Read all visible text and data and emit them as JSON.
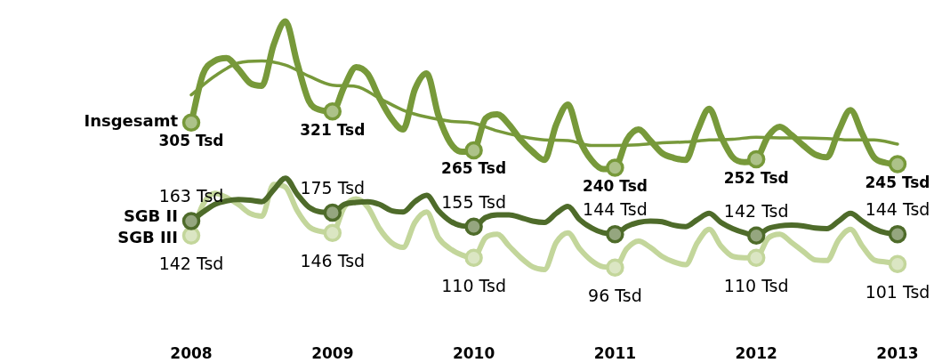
{
  "chart_data": {
    "type": "line",
    "x": [
      "2008-01",
      "2008-02",
      "2008-03",
      "2008-04",
      "2008-05",
      "2008-06",
      "2008-07",
      "2008-08",
      "2008-09",
      "2008-10",
      "2008-11",
      "2008-12",
      "2009-01",
      "2009-02",
      "2009-03",
      "2009-04",
      "2009-05",
      "2009-06",
      "2009-07",
      "2009-08",
      "2009-09",
      "2009-10",
      "2009-11",
      "2009-12",
      "2010-01",
      "2010-02",
      "2010-03",
      "2010-04",
      "2010-05",
      "2010-06",
      "2010-07",
      "2010-08",
      "2010-09",
      "2010-10",
      "2010-11",
      "2010-12",
      "2011-01",
      "2011-02",
      "2011-03",
      "2011-04",
      "2011-05",
      "2011-06",
      "2011-07",
      "2011-08",
      "2011-09",
      "2011-10",
      "2011-11",
      "2011-12",
      "2012-01",
      "2012-02",
      "2012-03",
      "2012-04",
      "2012-05",
      "2012-06",
      "2012-07",
      "2012-08",
      "2012-09",
      "2012-10",
      "2012-11",
      "2012-12",
      "2013-01"
    ],
    "xlim": [
      "2008",
      "2013"
    ],
    "xticks": [
      "2008",
      "2009",
      "2010",
      "2011",
      "2012",
      "2013"
    ],
    "tick_labels": "x",
    "grid": false,
    "legend": false,
    "line_style": "solid",
    "series": [
      {
        "name": "Insgesamt",
        "color": "#77993a",
        "values": [
          305,
          375,
          394,
          398,
          382,
          362,
          358,
          417,
          451,
          391,
          336,
          323,
          321,
          357,
          385,
          375,
          340,
          311,
          295,
          353,
          376,
          315,
          276,
          263,
          265,
          311,
          317,
          302,
          280,
          263,
          251,
          302,
          331,
          280,
          251,
          238,
          240,
          280,
          295,
          279,
          261,
          254,
          251,
          293,
          325,
          285,
          255,
          248,
          252,
          285,
          299,
          287,
          272,
          259,
          255,
          293,
          323,
          289,
          255,
          247,
          245
        ],
        "value_labels": [
          "305 Tsd",
          null,
          null,
          null,
          null,
          null,
          null,
          null,
          null,
          null,
          null,
          null,
          "321 Tsd",
          null,
          null,
          null,
          null,
          null,
          null,
          null,
          null,
          null,
          null,
          null,
          "265 Tsd",
          null,
          null,
          null,
          null,
          null,
          null,
          null,
          null,
          null,
          null,
          null,
          "240 Tsd",
          null,
          null,
          null,
          null,
          null,
          null,
          null,
          null,
          null,
          null,
          null,
          "252 Tsd",
          null,
          null,
          null,
          null,
          null,
          null,
          null,
          null,
          null,
          null,
          null,
          "245 Tsd"
        ]
      },
      {
        "type": "line",
        "color": "#77993a",
        "x": [
          "2008-01",
          "2008-03",
          "2008-05",
          "2008-07",
          "2008-09",
          "2008-11",
          "2009-01",
          "2009-03",
          "2009-05",
          "2009-07",
          "2009-09",
          "2009-11",
          "2010-01",
          "2010-03",
          "2010-05",
          "2010-07",
          "2010-09",
          "2010-11",
          "2011-01",
          "2011-03",
          "2011-05",
          "2011-07",
          "2011-09",
          "2011-11",
          "2012-01",
          "2012-03",
          "2012-05",
          "2012-07",
          "2012-09",
          "2012-11",
          "2013-01"
        ],
        "values": [
          345,
          372,
          391,
          394,
          388,
          372,
          359,
          357,
          340,
          323,
          313,
          307,
          304,
          293,
          285,
          280,
          279,
          272,
          272,
          273,
          276,
          277,
          280,
          281,
          284,
          283,
          283,
          282,
          280,
          280,
          274
        ]
      },
      {
        "name": "SGB II",
        "color": "#4e6b2a",
        "values": [
          163,
          176,
          187,
          192,
          194,
          193,
          191,
          208,
          225,
          202,
          183,
          176,
          175,
          187,
          190,
          191,
          187,
          178,
          176,
          191,
          200,
          178,
          163,
          156,
          155,
          168,
          172,
          172,
          168,
          163,
          161,
          174,
          184,
          165,
          153,
          146,
          144,
          155,
          161,
          163,
          162,
          157,
          155,
          165,
          174,
          161,
          152,
          146,
          142,
          152,
          156,
          157,
          156,
          153,
          152,
          163,
          174,
          163,
          152,
          146,
          144
        ],
        "value_labels": [
          "163 Tsd",
          null,
          null,
          null,
          null,
          null,
          null,
          null,
          null,
          null,
          null,
          null,
          "175 Tsd",
          null,
          null,
          null,
          null,
          null,
          null,
          null,
          null,
          null,
          null,
          null,
          "155 Tsd",
          null,
          null,
          null,
          null,
          null,
          null,
          null,
          null,
          null,
          null,
          null,
          "144 Tsd",
          null,
          null,
          null,
          null,
          null,
          null,
          null,
          null,
          null,
          null,
          null,
          "142 Tsd",
          null,
          null,
          null,
          null,
          null,
          null,
          null,
          null,
          null,
          null,
          null,
          "144 Tsd"
        ]
      },
      {
        "name": "SGB III",
        "color": "#c3d69b",
        "values": [
          142,
          187,
          203,
          197,
          187,
          174,
          170,
          216,
          212,
          178,
          155,
          148,
          146,
          183,
          195,
          183,
          152,
          132,
          125,
          161,
          176,
          139,
          123,
          114,
          110,
          139,
          144,
          127,
          110,
          97,
          93,
          132,
          146,
          123,
          106,
          97,
          96,
          123,
          134,
          125,
          112,
          104,
          100,
          132,
          151,
          127,
          112,
          110,
          110,
          138,
          144,
          132,
          119,
          107,
          106,
          136,
          151,
          127,
          107,
          104,
          101
        ],
        "value_labels": [
          "142 Tsd",
          null,
          null,
          null,
          null,
          null,
          null,
          null,
          null,
          null,
          null,
          null,
          "146 Tsd",
          null,
          null,
          null,
          null,
          null,
          null,
          null,
          null,
          null,
          null,
          null,
          "110 Tsd",
          null,
          null,
          null,
          null,
          null,
          null,
          null,
          null,
          null,
          null,
          null,
          "96 Tsd",
          null,
          null,
          null,
          null,
          null,
          null,
          null,
          null,
          null,
          null,
          null,
          "110 Tsd",
          null,
          null,
          null,
          null,
          null,
          null,
          null,
          null,
          null,
          null,
          null,
          "101 Tsd"
        ]
      }
    ]
  }
}
